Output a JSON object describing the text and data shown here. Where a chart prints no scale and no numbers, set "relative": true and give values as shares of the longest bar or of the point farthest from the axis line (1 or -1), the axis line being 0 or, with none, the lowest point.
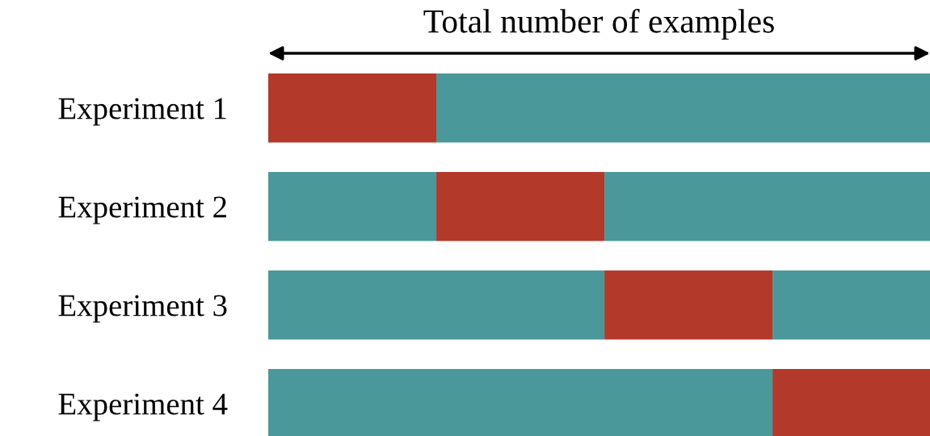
{
  "chart_data": {
    "type": "bar",
    "orientation": "horizontal",
    "stacked": true,
    "relative": true,
    "title": "Total number of examples",
    "categories": [
      "Experiment 1",
      "Experiment 2",
      "Experiment 3",
      "Experiment 4"
    ],
    "series": [
      {
        "values": [
          0.254,
          0.254,
          0.508,
          0.762
        ],
        "colors": [
          "#b33a2a",
          "#4a9899",
          "#4a9899",
          "#4a9899"
        ]
      },
      {
        "values": [
          0.746,
          0.254,
          0.254,
          0.238
        ],
        "colors": [
          "#4a9899",
          "#b33a2a",
          "#b33a2a",
          "#b33a2a"
        ]
      },
      {
        "values": [
          null,
          0.492,
          0.238,
          null
        ],
        "colors": [
          "#4a9899",
          "#4a9899",
          "#4a9899",
          "#4a9899"
        ]
      }
    ]
  }
}
